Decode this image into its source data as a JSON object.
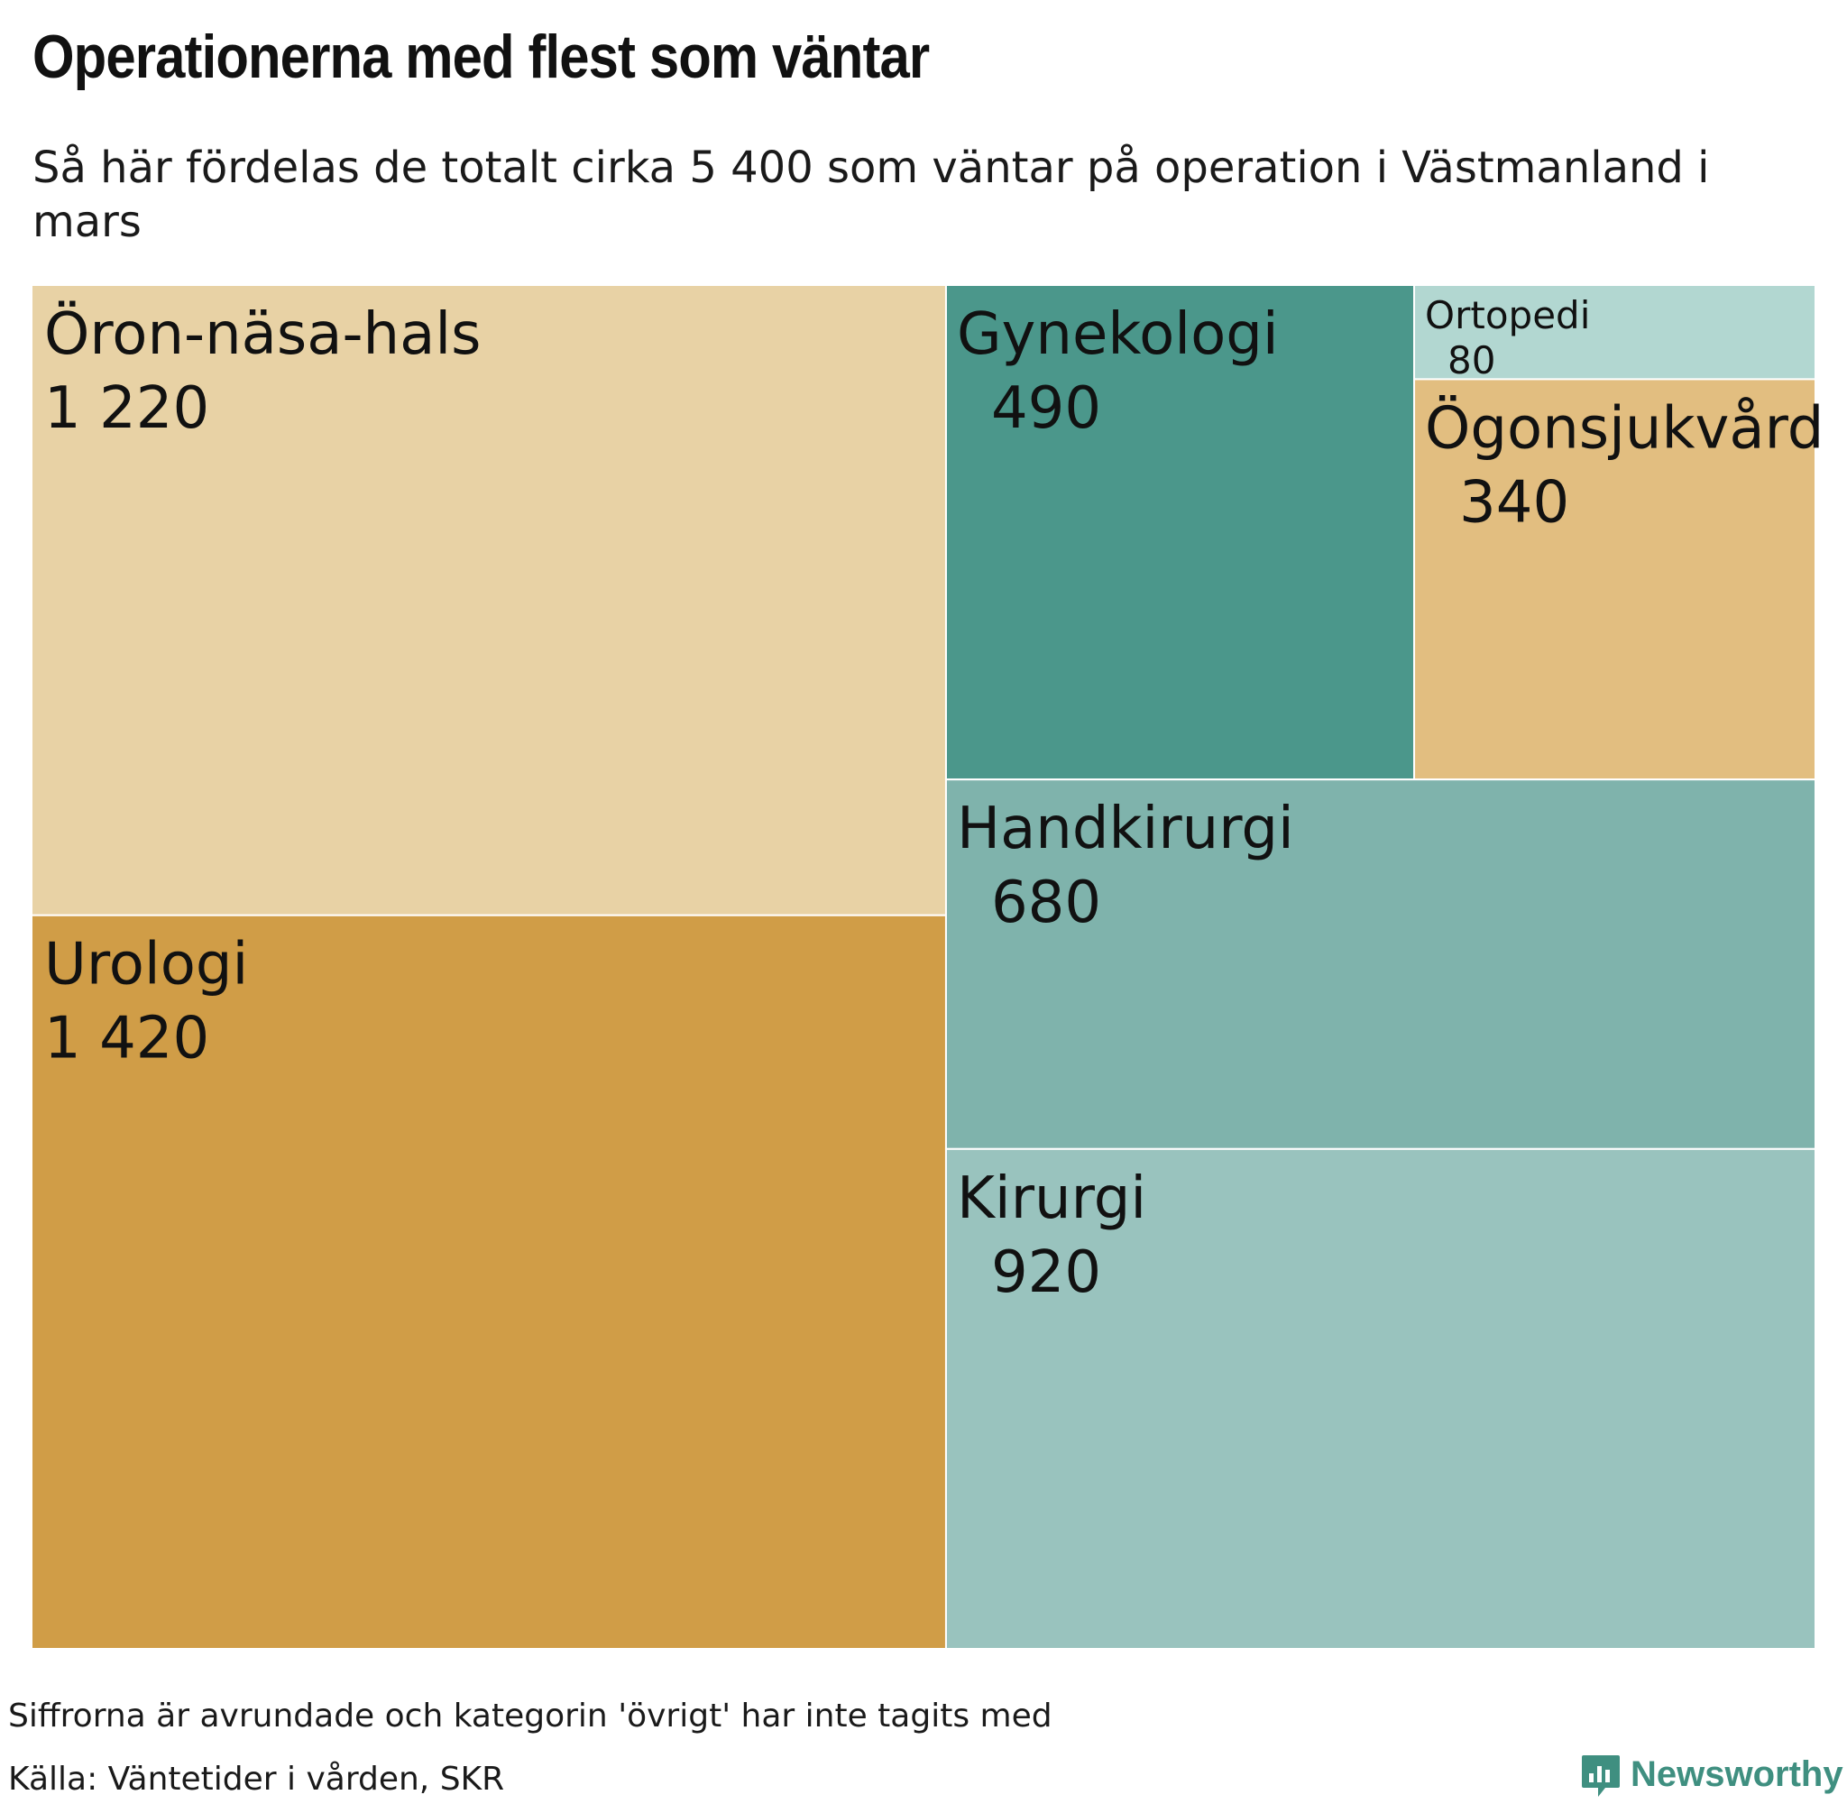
{
  "header": {
    "title": "Operationerna med flest som väntar",
    "subtitle": "Så här fördelas de totalt cirka 5 400 som väntar på operation i Västmanland i mars"
  },
  "chart_data": {
    "type": "treemap",
    "total_label": "5 400",
    "cells": [
      {
        "name": "Öron-näsa-hals",
        "value": 1220,
        "value_label": "1 220",
        "color": "#e8d2a5"
      },
      {
        "name": "Urologi",
        "value": 1420,
        "value_label": "1 420",
        "color": "#d09d47"
      },
      {
        "name": "Gynekologi",
        "value": 490,
        "value_label": "490",
        "color": "#4b978b"
      },
      {
        "name": "Ortopedi",
        "value": 80,
        "value_label": "80",
        "color": "#b2d7d1"
      },
      {
        "name": "Ögonsjukvård",
        "value": 340,
        "value_label": "340",
        "color": "#e2be80"
      },
      {
        "name": "Handkirurgi",
        "value": 680,
        "value_label": "680",
        "color": "#7fb3ac"
      },
      {
        "name": "Kirurgi",
        "value": 920,
        "value_label": "920",
        "color": "#99c3be"
      }
    ]
  },
  "footer": {
    "note": "Siffrorna är avrundade och kategorin 'övrigt' har inte tagits med",
    "source": "Källa: Väntetider i vården, SKR",
    "brand": "Newsworthy",
    "brand_color": "#3f8f80",
    "brand_icon": "bar-chart-bubble-icon"
  }
}
